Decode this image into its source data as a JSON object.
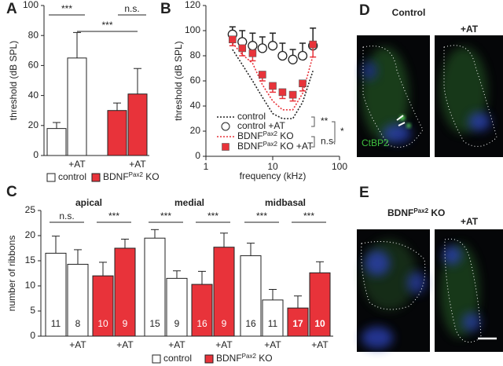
{
  "chart_data": [
    {
      "type": "bar",
      "panel": "A",
      "y_label": "threshold (dB SPL)",
      "categories": [
        null,
        "+AT",
        null,
        "+AT"
      ],
      "series": [
        {
          "name": "control",
          "color": "#ffffff",
          "values": [
            18,
            65,
            null,
            null
          ],
          "errors": [
            4,
            17,
            null,
            null
          ]
        },
        {
          "name": [
            "BDNF",
            "Pax2",
            " KO"
          ],
          "color": "#e8333a",
          "values": [
            null,
            null,
            30,
            41
          ],
          "errors": [
            null,
            null,
            5,
            17
          ]
        }
      ],
      "ylim": [
        0,
        100
      ],
      "yticks": [
        0,
        20,
        40,
        60,
        80,
        100
      ],
      "annotations": [
        "***",
        "***",
        "n.s."
      ]
    },
    {
      "type": "line",
      "panel": "B",
      "y_label": "threshold (dB SPL)",
      "x_label": "frequency (kHz)",
      "log_x": true,
      "x": [
        2.5,
        3.5,
        5,
        7,
        10,
        14,
        20,
        28,
        40
      ],
      "series": [
        {
          "name": "control",
          "color": "#222222",
          "style": "dotted",
          "values": [
            85,
            73,
            60,
            47,
            34,
            30,
            30,
            43,
            68
          ]
        },
        {
          "name": "control +AT",
          "color": "#222222",
          "style": "circle",
          "values": [
            97,
            91,
            88,
            86,
            88,
            80,
            77,
            80,
            88
          ],
          "errors": [
            6,
            9,
            10,
            9,
            10,
            10,
            8,
            10,
            14
          ]
        },
        {
          "name": [
            "BDNF",
            "Pax2",
            " KO"
          ],
          "color": "#e8333a",
          "style": "dotted",
          "values": [
            90,
            81,
            74,
            57,
            44,
            37,
            37,
            50,
            80
          ]
        },
        {
          "name": [
            "BDNF",
            "Pax2",
            " KO +AT"
          ],
          "color": "#e8333a",
          "style": "square",
          "values": [
            93,
            86,
            82,
            65,
            56,
            51,
            49,
            58,
            89
          ],
          "errors": [
            5,
            6,
            6,
            5,
            5,
            5,
            5,
            6,
            10
          ]
        }
      ],
      "xlim": [
        1,
        100
      ],
      "xticks": [
        1,
        10,
        100
      ],
      "ylim": [
        0,
        120
      ],
      "yticks": [
        0,
        20,
        40,
        60,
        80,
        100,
        120
      ],
      "annotations": [
        "**",
        "n.s.",
        "*"
      ]
    },
    {
      "type": "bar",
      "panel": "C",
      "y_label": "number of ribbons",
      "groups": [
        "apical",
        "medial",
        "midbasal"
      ],
      "categories": [
        null,
        "+AT",
        null,
        "+AT",
        null,
        "+AT",
        null,
        "+AT",
        null,
        "+AT",
        null,
        "+AT"
      ],
      "series": [
        {
          "name": "control",
          "color": "#ffffff",
          "values": [
            16.5,
            14.3,
            null,
            null,
            19.5,
            11.5,
            null,
            null,
            16,
            7.2,
            null,
            null
          ],
          "errors": [
            3.4,
            2.9,
            null,
            null,
            1.7,
            1.5,
            null,
            null,
            2.5,
            2.1,
            null,
            null
          ],
          "n": [
            11,
            8,
            null,
            null,
            15,
            9,
            null,
            null,
            16,
            11,
            null,
            null
          ]
        },
        {
          "name": [
            "BDNF",
            "Pax2",
            " KO"
          ],
          "color": "#e8333a",
          "values": [
            null,
            null,
            12,
            17.5,
            null,
            null,
            10.3,
            17.7,
            null,
            null,
            5.6,
            12.6
          ],
          "errors": [
            null,
            null,
            2.7,
            1.8,
            null,
            null,
            2.6,
            2.8,
            null,
            null,
            2.4,
            2.2
          ],
          "n": [
            null,
            null,
            10,
            9,
            null,
            null,
            16,
            9,
            null,
            null,
            17,
            10
          ]
        }
      ],
      "ylim": [
        0,
        25
      ],
      "yticks": [
        0,
        5,
        10,
        15,
        20,
        25
      ],
      "annotations": [
        "n.s.",
        "***",
        "***",
        "***",
        "***",
        "***"
      ]
    }
  ],
  "images": [
    {
      "panel": "D",
      "title": "Control",
      "right_label": "+AT",
      "stain": "CtBP2"
    },
    {
      "panel": "E",
      "title": [
        "BDNF",
        "Pax2",
        " KO"
      ],
      "right_label": "+AT"
    }
  ]
}
